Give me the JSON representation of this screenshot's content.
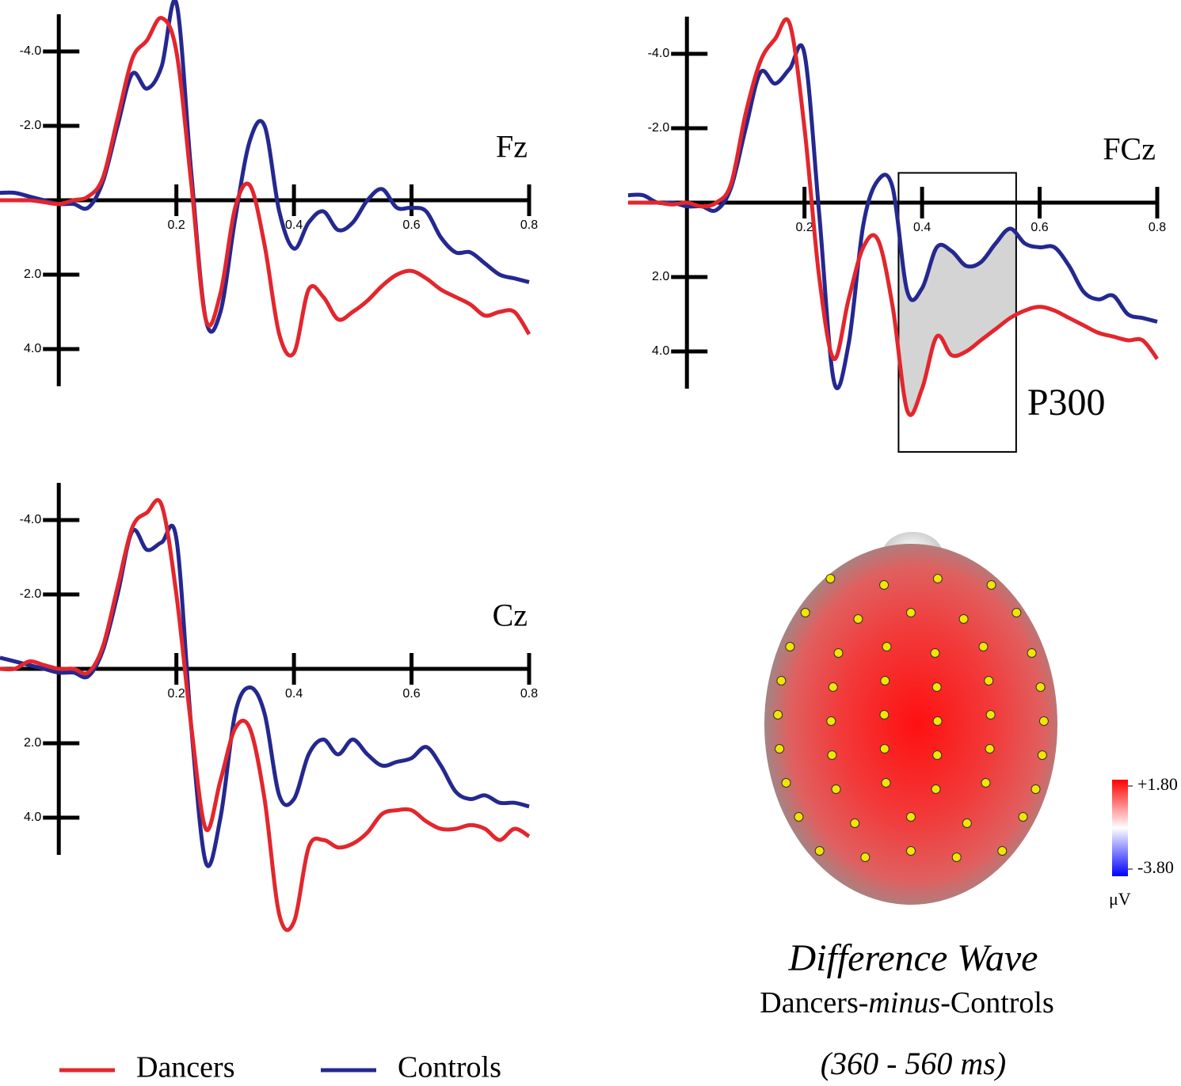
{
  "chart_data": [
    {
      "type": "line",
      "label": "Fz",
      "invert_y": true,
      "legend": "bottom",
      "x": [
        -0.1,
        -0.075,
        -0.05,
        -0.025,
        0,
        0.025,
        0.05,
        0.075,
        0.1,
        0.125,
        0.15,
        0.175,
        0.2,
        0.225,
        0.25,
        0.275,
        0.3,
        0.325,
        0.35,
        0.375,
        0.4,
        0.425,
        0.45,
        0.475,
        0.5,
        0.525,
        0.55,
        0.575,
        0.6,
        0.625,
        0.65,
        0.675,
        0.7,
        0.725,
        0.75,
        0.775,
        0.8
      ],
      "series": [
        {
          "name": "Dancers",
          "color": "#e3262d",
          "values": [
            0,
            0,
            0,
            0.05,
            0.1,
            0,
            -0.1,
            -0.6,
            -2.2,
            -3.8,
            -4.3,
            -4.9,
            -4.0,
            -0.5,
            3.2,
            2.5,
            0.2,
            -0.4,
            1.2,
            3.6,
            4.1,
            2.4,
            2.6,
            3.2,
            3.0,
            2.7,
            2.3,
            2.0,
            1.9,
            2.1,
            2.4,
            2.6,
            2.8,
            3.1,
            3.0,
            3.0,
            3.6
          ]
        },
        {
          "name": "Controls",
          "color": "#24288f",
          "values": [
            -0.2,
            -0.2,
            -0.1,
            0,
            0.1,
            0.1,
            0.2,
            -0.5,
            -2.0,
            -3.4,
            -3.0,
            -3.6,
            -5.3,
            -0.8,
            3.2,
            3.0,
            0.5,
            -1.6,
            -2.0,
            0.3,
            1.3,
            0.6,
            0.3,
            0.8,
            0.6,
            0.0,
            -0.3,
            0.2,
            0.2,
            0.3,
            1.0,
            1.4,
            1.4,
            1.7,
            2.0,
            2.1,
            2.2
          ]
        }
      ],
      "xlim": [
        -0.1,
        0.8
      ],
      "xticks": [
        0.2,
        0.4,
        0.6,
        0.8
      ],
      "ylim": [
        -5,
        5
      ],
      "yticks": [
        {
          "value": -4,
          "label": "-4.0"
        },
        {
          "value": -2,
          "label": "-2.0"
        },
        {
          "value": 2,
          "label": "2.0"
        },
        {
          "value": 4,
          "label": "4.0"
        }
      ]
    },
    {
      "type": "line",
      "label": "FCz",
      "invert_y": true,
      "x": [
        -0.1,
        -0.075,
        -0.05,
        -0.025,
        0,
        0.025,
        0.05,
        0.075,
        0.1,
        0.125,
        0.15,
        0.175,
        0.2,
        0.225,
        0.25,
        0.275,
        0.3,
        0.325,
        0.35,
        0.375,
        0.4,
        0.425,
        0.45,
        0.475,
        0.5,
        0.525,
        0.55,
        0.575,
        0.6,
        0.625,
        0.65,
        0.675,
        0.7,
        0.725,
        0.75,
        0.775,
        0.8
      ],
      "series": [
        {
          "name": "Dancers",
          "color": "#e3262d",
          "values": [
            0,
            0,
            0,
            0.05,
            0,
            0.1,
            0,
            -0.5,
            -2.4,
            -3.8,
            -4.4,
            -4.8,
            -2.0,
            2.0,
            4.2,
            2.6,
            1.2,
            1.0,
            2.8,
            5.6,
            5.0,
            3.6,
            4.1,
            4.0,
            3.7,
            3.4,
            3.1,
            2.9,
            2.8,
            2.9,
            3.1,
            3.3,
            3.5,
            3.6,
            3.7,
            3.7,
            4.2
          ]
        },
        {
          "name": "Controls",
          "color": "#24288f",
          "values": [
            -0.2,
            -0.2,
            0,
            0,
            0.1,
            0.1,
            0.2,
            -0.4,
            -2.0,
            -3.5,
            -3.2,
            -3.6,
            -4.0,
            0.3,
            4.8,
            3.8,
            0.6,
            -0.6,
            -0.4,
            2.4,
            2.3,
            1.2,
            1.3,
            1.7,
            1.6,
            1.1,
            0.7,
            1.1,
            1.2,
            1.2,
            1.7,
            2.4,
            2.6,
            2.5,
            3.0,
            3.1,
            3.2
          ]
        }
      ],
      "xlim": [
        -0.1,
        0.8
      ],
      "xticks": [
        0.2,
        0.4,
        0.6,
        0.8
      ],
      "ylim": [
        -5,
        5
      ],
      "yticks": [
        {
          "value": -4,
          "label": "-4.0"
        },
        {
          "value": -2,
          "label": "-2.0"
        },
        {
          "value": 2,
          "label": "2.0"
        },
        {
          "value": 4,
          "label": "4.0"
        }
      ],
      "annotation": {
        "label": "P300",
        "x": [
          0.36,
          0.56
        ],
        "y": [
          -0.8,
          6.7
        ]
      }
    },
    {
      "type": "line",
      "label": "Cz",
      "invert_y": true,
      "x": [
        -0.1,
        -0.075,
        -0.05,
        -0.025,
        0,
        0.025,
        0.05,
        0.075,
        0.1,
        0.125,
        0.15,
        0.175,
        0.2,
        0.225,
        0.25,
        0.275,
        0.3,
        0.325,
        0.35,
        0.375,
        0.4,
        0.425,
        0.45,
        0.475,
        0.5,
        0.525,
        0.55,
        0.575,
        0.6,
        0.625,
        0.65,
        0.675,
        0.7,
        0.725,
        0.75,
        0.775,
        0.8
      ],
      "series": [
        {
          "name": "Dancers",
          "color": "#e3262d",
          "values": [
            0,
            0,
            -0.2,
            -0.1,
            0,
            0,
            0.1,
            -0.6,
            -2.2,
            -3.8,
            -4.2,
            -4.4,
            -2.0,
            1.5,
            4.3,
            3.0,
            1.6,
            1.6,
            3.5,
            6.6,
            6.8,
            4.8,
            4.6,
            4.8,
            4.7,
            4.4,
            3.9,
            3.8,
            3.8,
            4.1,
            4.3,
            4.3,
            4.2,
            4.3,
            4.6,
            4.3,
            4.5
          ]
        },
        {
          "name": "Controls",
          "color": "#24288f",
          "values": [
            -0.3,
            -0.2,
            -0.1,
            0,
            0.1,
            0.1,
            0.2,
            -0.5,
            -2.0,
            -3.7,
            -3.2,
            -3.4,
            -3.5,
            1.5,
            5.2,
            4.0,
            1.2,
            0.5,
            1.2,
            3.4,
            3.5,
            2.3,
            1.9,
            2.3,
            1.9,
            2.3,
            2.6,
            2.5,
            2.4,
            2.1,
            2.6,
            3.3,
            3.5,
            3.4,
            3.6,
            3.6,
            3.7
          ]
        }
      ],
      "xlim": [
        -0.1,
        0.8
      ],
      "xticks": [
        0.2,
        0.4,
        0.6,
        0.8
      ],
      "ylim": [
        -5,
        5
      ],
      "yticks": [
        {
          "value": -4,
          "label": "-4.0"
        },
        {
          "value": -2,
          "label": "-2.0"
        },
        {
          "value": 2,
          "label": "2.0"
        },
        {
          "value": 4,
          "label": "4.0"
        }
      ]
    }
  ],
  "topomap": {
    "title": "Difference Wave",
    "subtitle": [
      "Dancers-",
      "minus",
      "-Controls"
    ],
    "window": "(360 - 560 ms)",
    "colorbar": {
      "ticks": [
        {
          "value": 1.8,
          "label": "+1.80"
        },
        {
          "value": -3.8,
          "label": "-3.80"
        }
      ],
      "unit": "μV",
      "colors": [
        "#ff0000",
        "#ffffff",
        "#0000ff"
      ]
    }
  }
}
